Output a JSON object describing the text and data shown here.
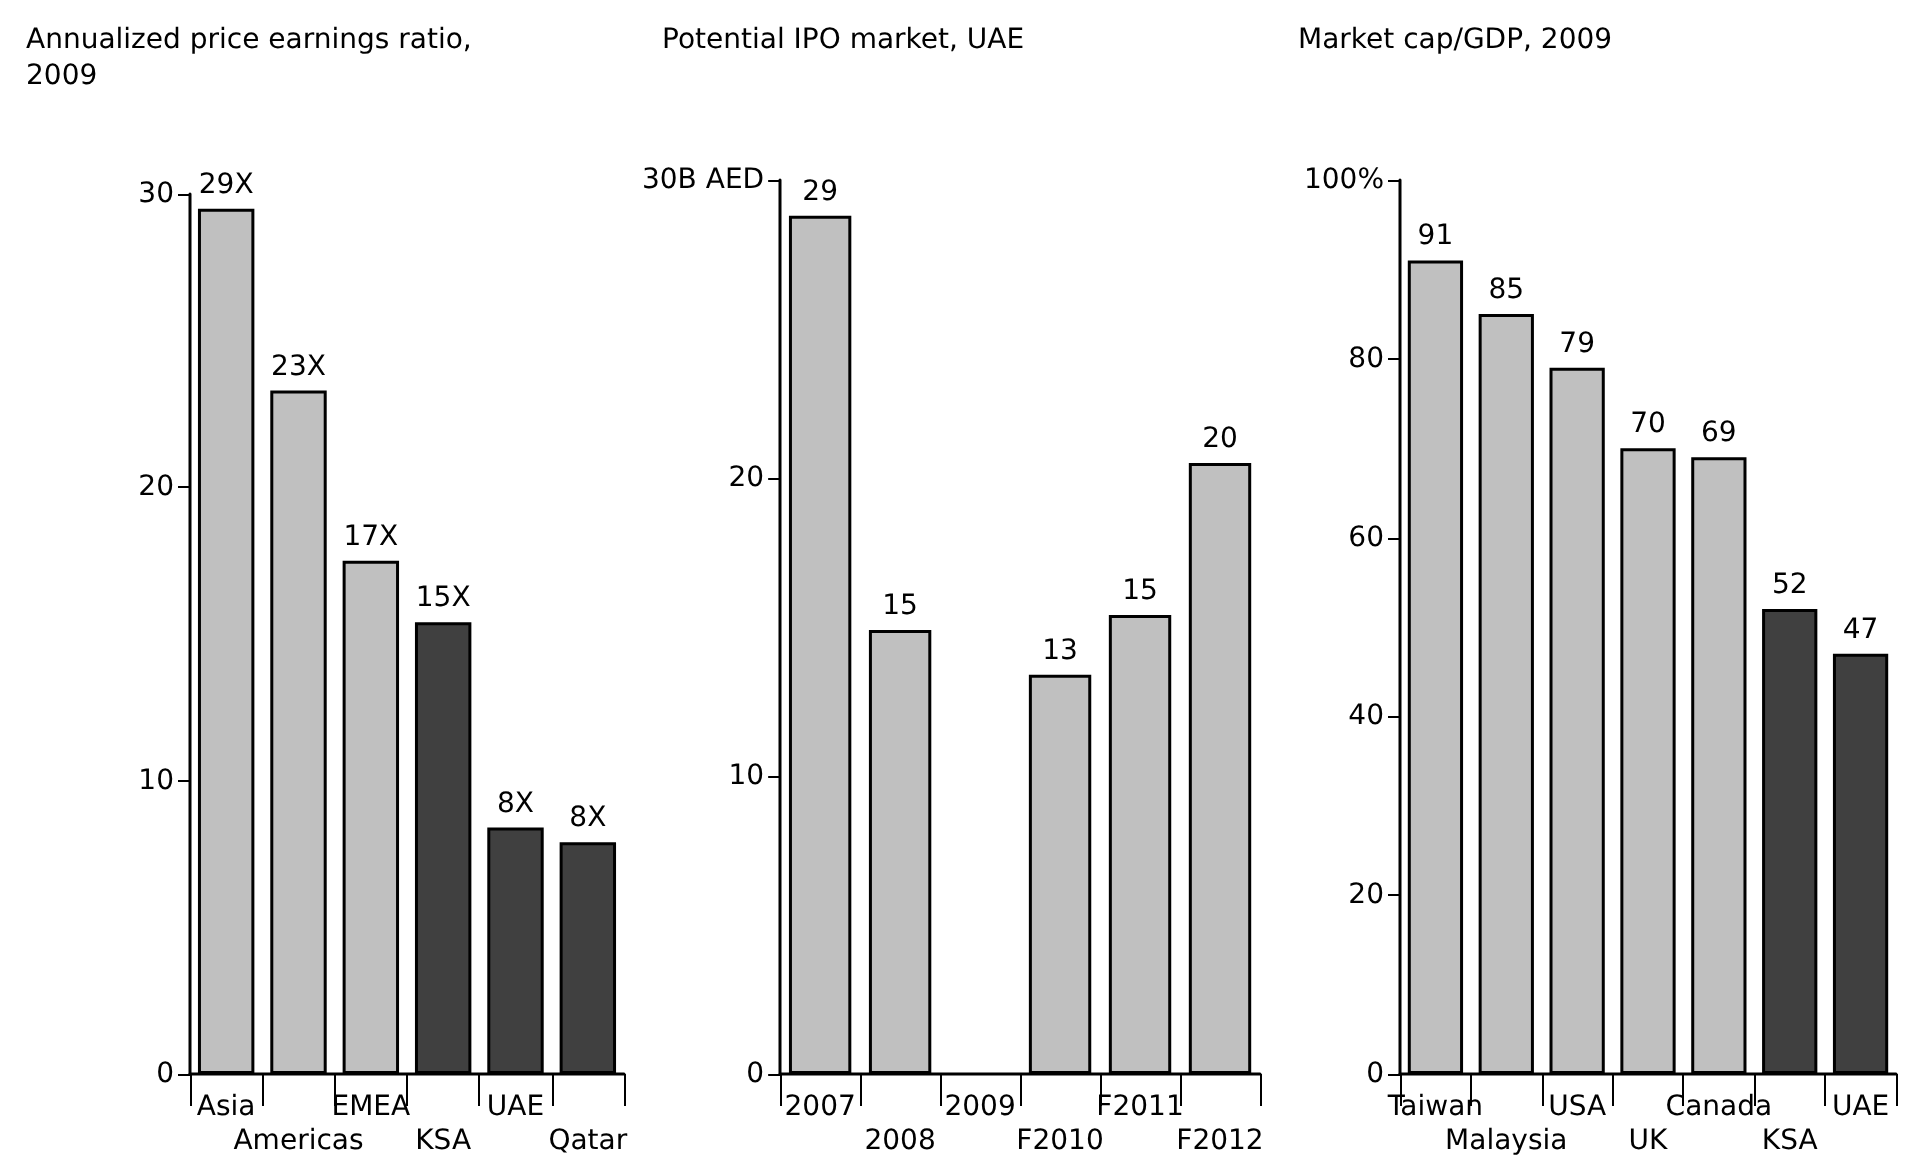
{
  "chart_data": [
    {
      "type": "bar",
      "title": "Annualized price earnings ratio, 2009",
      "categories": [
        "Asia",
        "Americas",
        "EMEA",
        "KSA",
        "UAE",
        "Qatar"
      ],
      "values": [
        29.5,
        23.3,
        17.5,
        15.4,
        8.4,
        7.9
      ],
      "value_labels": [
        "29X",
        "23X",
        "17X",
        "15X",
        "8X",
        "8X"
      ],
      "colors": [
        "#c0c0c0",
        "#c0c0c0",
        "#c0c0c0",
        "#404040",
        "#404040",
        "#404040"
      ],
      "ylim": [
        0,
        30
      ],
      "yticks": [
        0,
        10,
        20,
        30
      ],
      "grid": false
    },
    {
      "type": "bar",
      "title": "Potential IPO market, UAE",
      "categories": [
        "2007",
        "2008",
        "2009",
        "F2010",
        "F2011",
        "F2012"
      ],
      "values": [
        28.8,
        14.9,
        null,
        13.4,
        15.4,
        20.5
      ],
      "value_labels": [
        "29",
        "15",
        null,
        "13",
        "15",
        "20"
      ],
      "colors": [
        "#c0c0c0",
        "#c0c0c0",
        "#c0c0c0",
        "#c0c0c0",
        "#c0c0c0",
        "#c0c0c0"
      ],
      "ylim": [
        0,
        30
      ],
      "yticks": [
        0,
        10,
        20,
        {
          "value": 30,
          "label": "30B AED"
        }
      ],
      "grid": false
    },
    {
      "type": "bar",
      "title": "Market cap/GDP, 2009",
      "categories": [
        "Taiwan",
        "Malaysia",
        "USA",
        "UK",
        "Canada",
        "KSA",
        "UAE"
      ],
      "values": [
        91,
        85,
        79,
        70,
        69,
        52,
        47
      ],
      "data_labels": true,
      "colors": [
        "#c0c0c0",
        "#c0c0c0",
        "#c0c0c0",
        "#c0c0c0",
        "#c0c0c0",
        "#404040",
        "#404040"
      ],
      "ylim": [
        0,
        100
      ],
      "yticks": [
        0,
        20,
        40,
        60,
        80,
        {
          "value": 100,
          "label": "100%"
        }
      ],
      "grid": false
    }
  ]
}
